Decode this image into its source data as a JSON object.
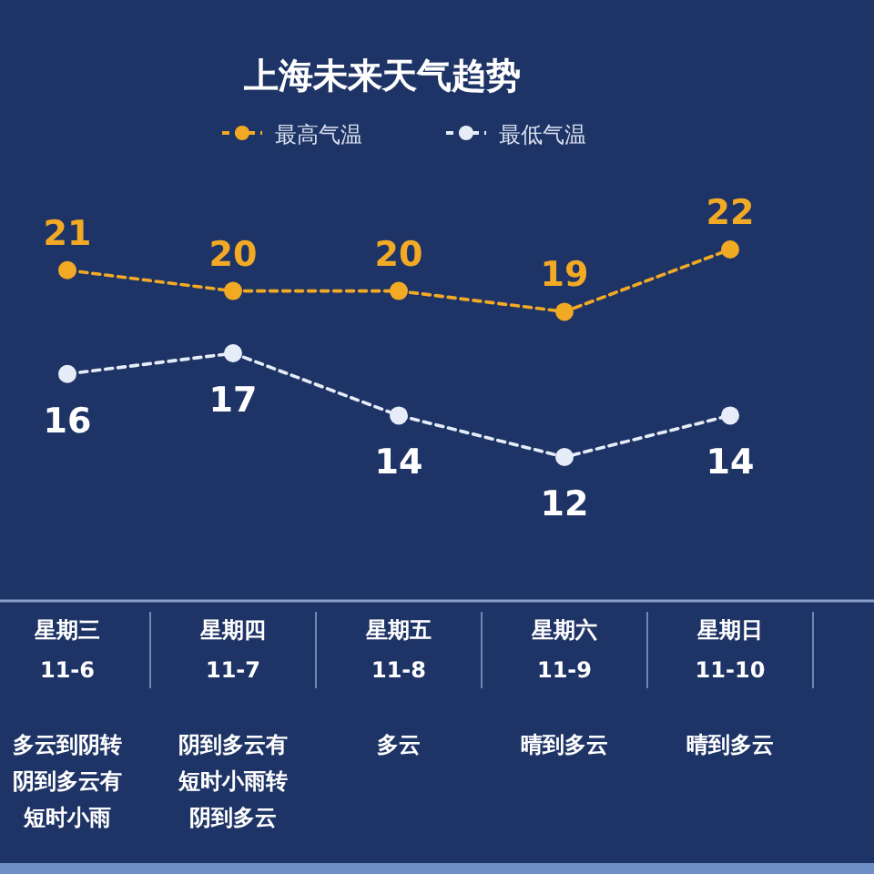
{
  "chart_data": {
    "type": "line",
    "title": "上海未来天气趋势",
    "categories": [
      "星期三 11-6",
      "星期四 11-7",
      "星期五 11-8",
      "星期六 11-9",
      "星期日 11-10"
    ],
    "series": [
      {
        "name": "最高气温",
        "color": "#f2aa25",
        "values": [
          21,
          20,
          20,
          19,
          22
        ]
      },
      {
        "name": "最低气温",
        "color": "#e6edf8",
        "values": [
          16,
          17,
          14,
          12,
          14
        ]
      }
    ],
    "annotations": [
      "多云到阴转阴到多云有短时小雨",
      "阴到多云有短时小雨转阴到多云",
      "多云",
      "晴到多云",
      "晴到多云"
    ],
    "data_labels": true,
    "legend": "top",
    "marker": "circle",
    "line_style": "dashed",
    "grid": false
  }
}
